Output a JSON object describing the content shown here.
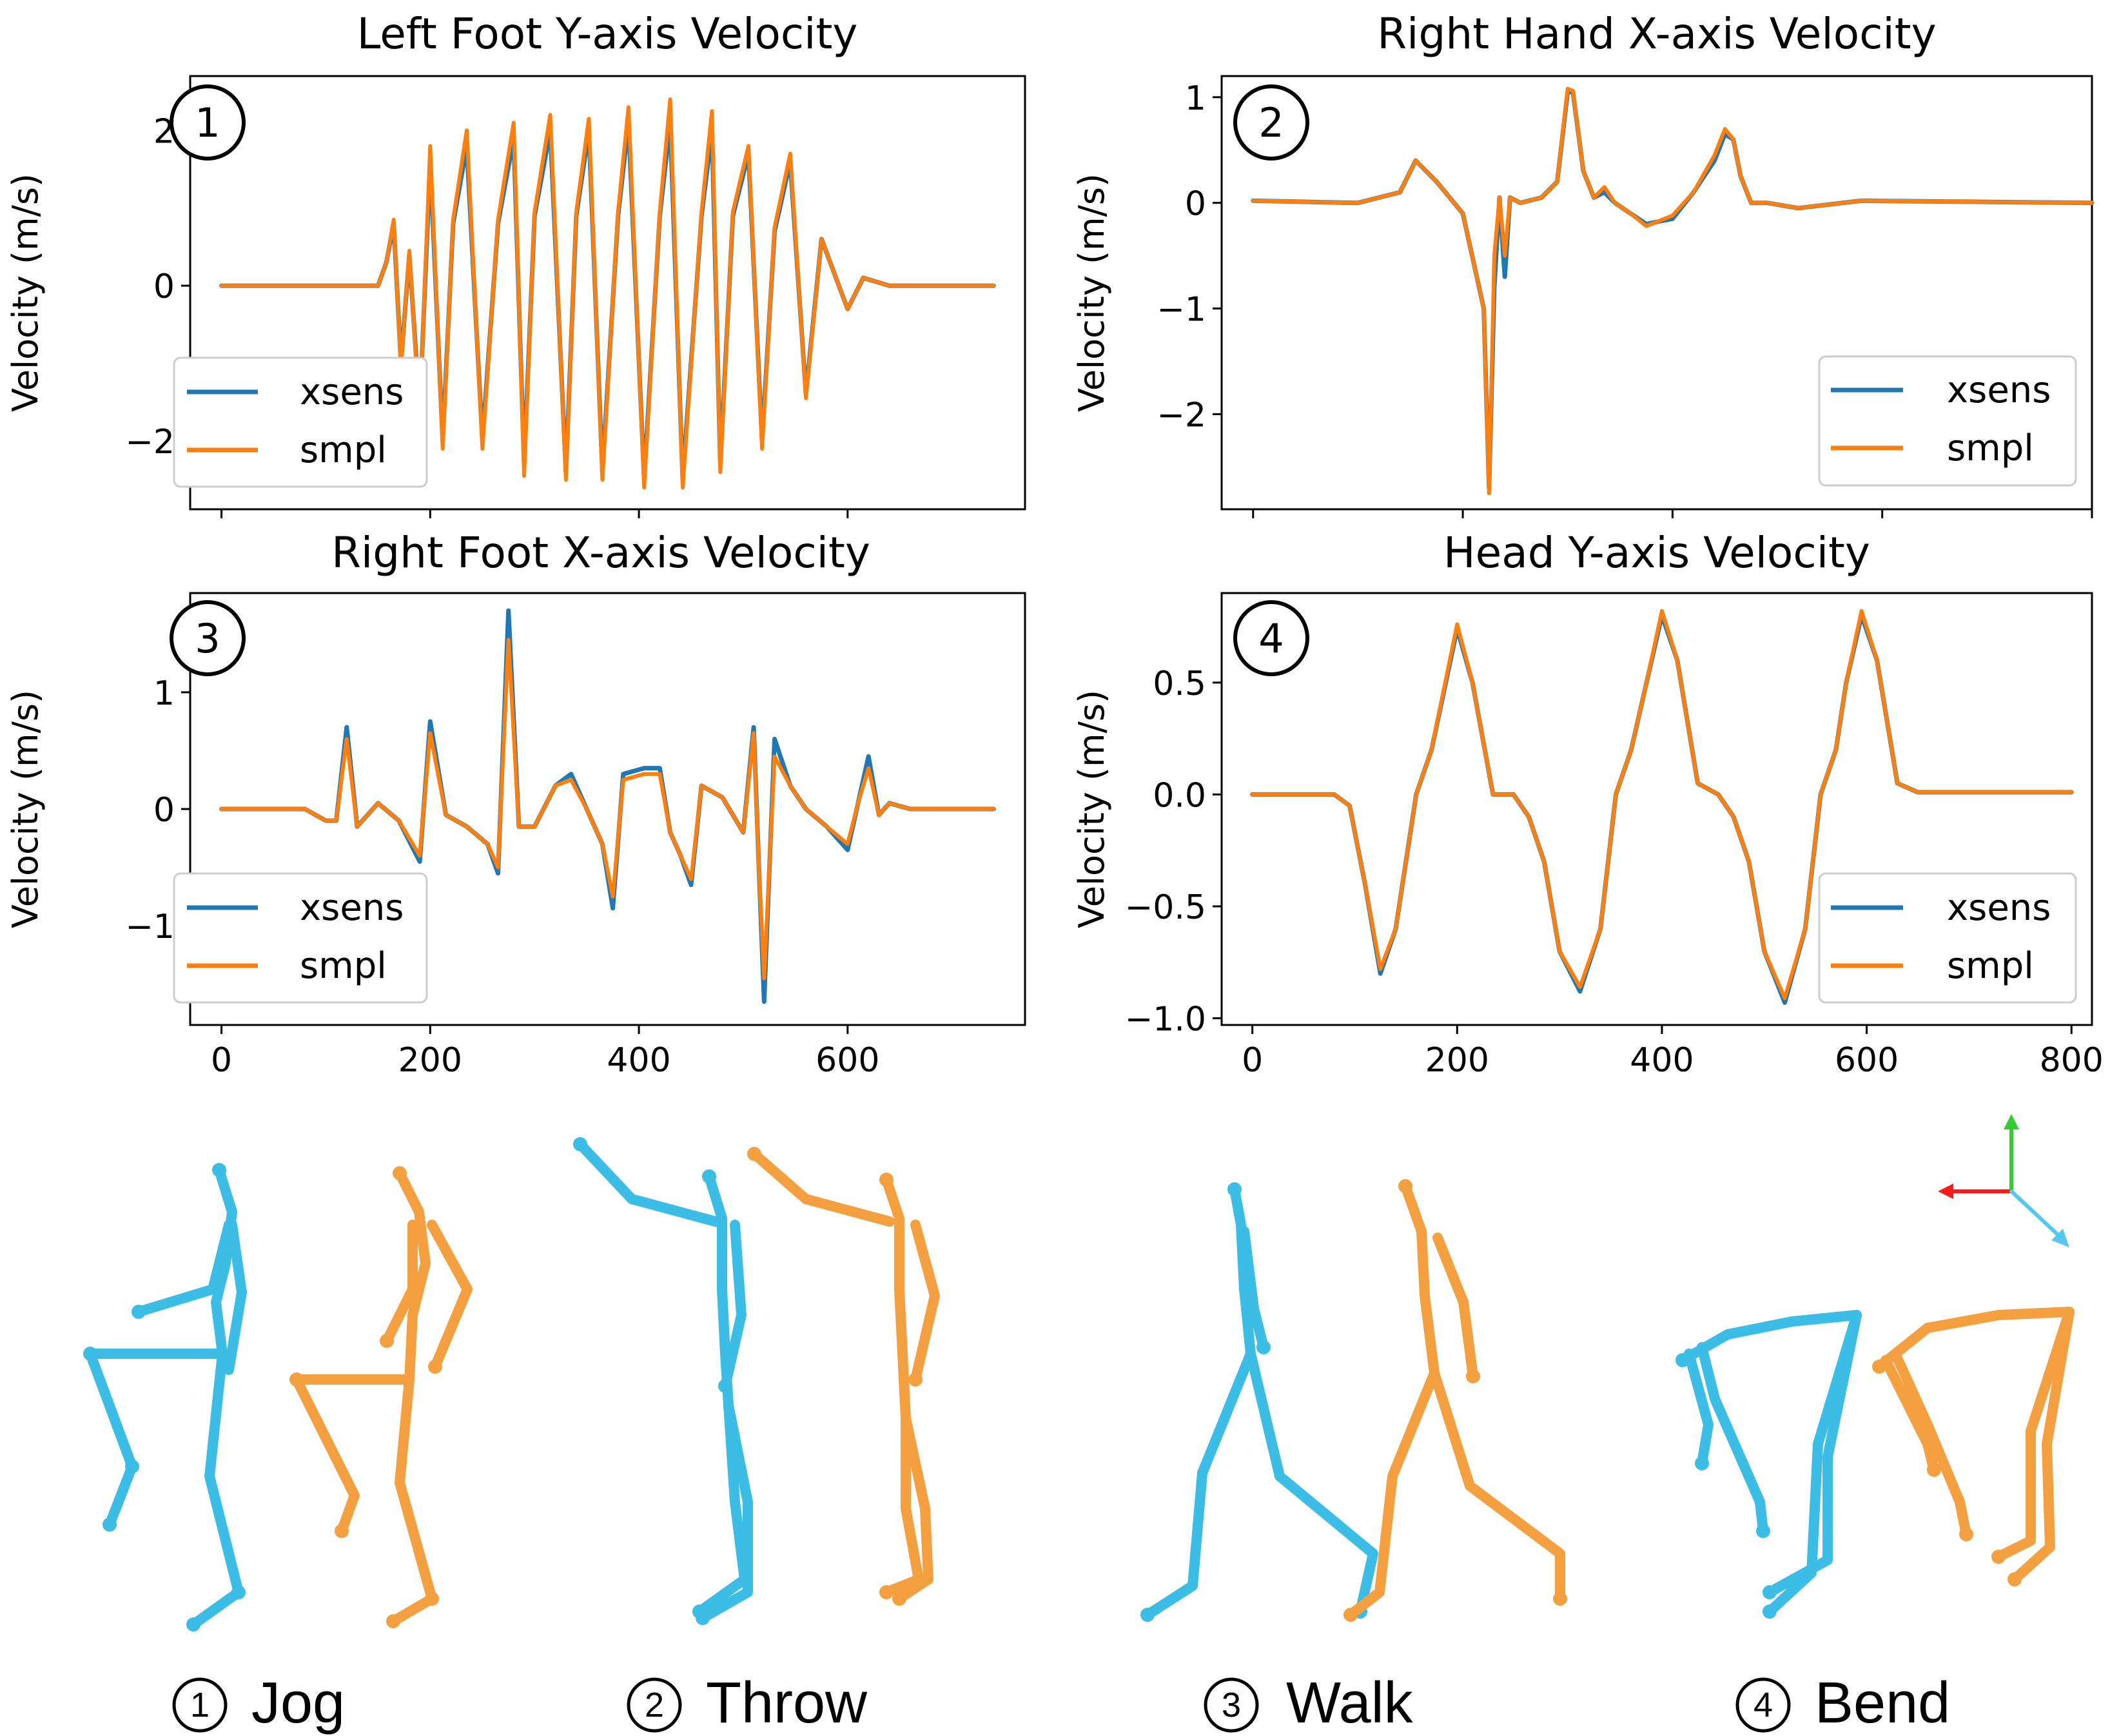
{
  "colors": {
    "xsens": "#1f77b4",
    "smpl": "#ff7f0e",
    "figure_xsens": "#3cbde6",
    "figure_smpl": "#f4a040",
    "axis_x": "#ff1a1a",
    "axis_y": "#33cc33",
    "axis_z": "#55c8f0"
  },
  "chart_data": [
    {
      "type": "line",
      "badge": "1",
      "title": "Left Foot Y-axis Velocity",
      "ylabel": "Velocity (m/s)",
      "xlabel": "",
      "xlim": [
        -30,
        770
      ],
      "ylim": [
        -2.88,
        2.7
      ],
      "yticks": [
        -2,
        0,
        2
      ],
      "ytick_labels": [
        "−2",
        "0",
        "2"
      ],
      "xticks": [
        0,
        200,
        400,
        600
      ],
      "xtick_labels": [],
      "legend": [
        "xsens",
        "smpl"
      ],
      "legend_position": "lower left",
      "series": [
        {
          "name": "xsens",
          "x": [
            0,
            150,
            158,
            165,
            172,
            180,
            190,
            200,
            212,
            222,
            235,
            250,
            265,
            280,
            290,
            300,
            315,
            330,
            340,
            352,
            365,
            380,
            390,
            405,
            420,
            430,
            442,
            460,
            470,
            478,
            490,
            505,
            518,
            530,
            545,
            560,
            575,
            600,
            615,
            640,
            660,
            740
          ],
          "y": [
            0,
            0,
            0.3,
            0.8,
            -1.0,
            0.4,
            -1.6,
            1.6,
            -2.0,
            0.8,
            1.8,
            -2.0,
            0.8,
            1.9,
            -2.3,
            0.9,
            2.0,
            -2.4,
            0.9,
            2.0,
            -2.4,
            0.9,
            2.1,
            -2.5,
            0.9,
            2.1,
            -2.5,
            0.9,
            2.0,
            -2.3,
            0.9,
            1.7,
            -2.0,
            0.7,
            1.6,
            -1.4,
            0.6,
            -0.3,
            0.1,
            0,
            0,
            0
          ]
        },
        {
          "name": "smpl",
          "x": [
            0,
            150,
            158,
            165,
            172,
            180,
            190,
            200,
            212,
            222,
            235,
            250,
            265,
            280,
            290,
            300,
            315,
            330,
            340,
            352,
            365,
            380,
            390,
            405,
            420,
            430,
            442,
            460,
            470,
            478,
            490,
            505,
            518,
            530,
            545,
            560,
            575,
            600,
            615,
            640,
            660,
            740
          ],
          "y": [
            0,
            0,
            0.3,
            0.85,
            -1.05,
            0.45,
            -1.7,
            1.8,
            -2.1,
            0.85,
            2.0,
            -2.1,
            0.85,
            2.1,
            -2.45,
            0.95,
            2.2,
            -2.5,
            0.95,
            2.15,
            -2.5,
            0.95,
            2.3,
            -2.6,
            0.95,
            2.4,
            -2.6,
            0.95,
            2.25,
            -2.4,
            0.95,
            1.8,
            -2.1,
            0.75,
            1.7,
            -1.45,
            0.6,
            -0.3,
            0.1,
            0,
            0,
            0
          ]
        }
      ]
    },
    {
      "type": "line",
      "badge": "2",
      "title": "Right Hand X-axis Velocity",
      "ylabel": "Velocity (m/s)",
      "xlabel": "",
      "xlim": [
        -30,
        800
      ],
      "ylim": [
        -2.9,
        1.2
      ],
      "yticks": [
        -2,
        -1,
        0,
        1
      ],
      "ytick_labels": [
        "−2",
        "−1",
        "0",
        "1"
      ],
      "xticks": [
        0,
        200,
        400,
        600,
        800
      ],
      "xtick_labels": [],
      "legend": [
        "xsens",
        "smpl"
      ],
      "legend_position": "lower right",
      "series": [
        {
          "name": "xsens",
          "x": [
            0,
            100,
            140,
            155,
            175,
            200,
            220,
            225,
            230,
            235,
            240,
            245,
            255,
            275,
            290,
            300,
            305,
            315,
            325,
            335,
            345,
            360,
            375,
            400,
            420,
            440,
            450,
            458,
            465,
            475,
            490,
            520,
            580,
            800
          ],
          "y": [
            0.02,
            0,
            0.1,
            0.4,
            0.2,
            -0.1,
            -1.0,
            -2.7,
            -0.8,
            0.05,
            -0.7,
            0.05,
            0.0,
            0.05,
            0.2,
            1.05,
            1.05,
            0.3,
            0.05,
            0.1,
            0.0,
            -0.1,
            -0.2,
            -0.15,
            0.1,
            0.4,
            0.65,
            0.6,
            0.25,
            0.0,
            0.0,
            -0.05,
            0.02,
            0
          ]
        },
        {
          "name": "smpl",
          "x": [
            0,
            100,
            140,
            155,
            175,
            200,
            220,
            225,
            230,
            235,
            240,
            245,
            255,
            275,
            290,
            300,
            305,
            315,
            325,
            335,
            345,
            360,
            375,
            400,
            420,
            440,
            450,
            458,
            465,
            475,
            490,
            520,
            580,
            800
          ],
          "y": [
            0.02,
            0,
            0.1,
            0.4,
            0.2,
            -0.1,
            -1.0,
            -2.75,
            -0.5,
            0.05,
            -0.5,
            0.05,
            0.0,
            0.05,
            0.2,
            1.08,
            1.06,
            0.3,
            0.05,
            0.15,
            0.0,
            -0.1,
            -0.22,
            -0.12,
            0.1,
            0.45,
            0.7,
            0.6,
            0.25,
            0.0,
            0.0,
            -0.05,
            0.02,
            0
          ]
        }
      ]
    },
    {
      "type": "line",
      "badge": "3",
      "title": "Right Foot X-axis Velocity",
      "ylabel": "Velocity (m/s)",
      "xlabel": "",
      "xlim": [
        -30,
        770
      ],
      "ylim": [
        -1.85,
        1.85
      ],
      "yticks": [
        -1,
        0,
        1
      ],
      "ytick_labels": [
        "−1",
        "0",
        "1"
      ],
      "xticks": [
        0,
        200,
        400,
        600
      ],
      "xtick_labels": [
        "0",
        "200",
        "400",
        "600"
      ],
      "legend": [
        "xsens",
        "smpl"
      ],
      "legend_position": "lower left",
      "series": [
        {
          "name": "xsens",
          "x": [
            0,
            80,
            100,
            110,
            120,
            130,
            150,
            170,
            190,
            200,
            215,
            235,
            255,
            265,
            275,
            285,
            300,
            320,
            335,
            350,
            365,
            375,
            385,
            405,
            420,
            430,
            440,
            450,
            460,
            480,
            500,
            510,
            515,
            520,
            530,
            545,
            560,
            580,
            600,
            610,
            620,
            630,
            640,
            660,
            740
          ],
          "y": [
            0,
            0,
            -0.1,
            -0.1,
            0.7,
            -0.15,
            0.05,
            -0.1,
            -0.45,
            0.75,
            -0.05,
            -0.15,
            -0.3,
            -0.55,
            1.7,
            -0.15,
            -0.15,
            0.2,
            0.3,
            0.0,
            -0.3,
            -0.85,
            0.3,
            0.35,
            0.35,
            -0.2,
            -0.4,
            -0.65,
            0.2,
            0.1,
            -0.2,
            0.7,
            -0.5,
            -1.65,
            0.6,
            0.2,
            0.0,
            -0.15,
            -0.35,
            0.05,
            0.45,
            -0.05,
            0.05,
            0,
            0
          ]
        },
        {
          "name": "smpl",
          "x": [
            0,
            80,
            100,
            110,
            120,
            130,
            150,
            170,
            190,
            200,
            215,
            235,
            255,
            265,
            275,
            285,
            300,
            320,
            335,
            350,
            365,
            375,
            385,
            405,
            420,
            430,
            440,
            450,
            460,
            480,
            500,
            510,
            515,
            520,
            530,
            545,
            560,
            580,
            600,
            610,
            620,
            630,
            640,
            660,
            740
          ],
          "y": [
            0,
            0,
            -0.1,
            -0.1,
            0.6,
            -0.15,
            0.05,
            -0.1,
            -0.4,
            0.65,
            -0.05,
            -0.15,
            -0.3,
            -0.5,
            1.45,
            -0.15,
            -0.15,
            0.2,
            0.25,
            0.0,
            -0.3,
            -0.75,
            0.25,
            0.3,
            0.3,
            -0.2,
            -0.4,
            -0.6,
            0.2,
            0.1,
            -0.2,
            0.65,
            -0.5,
            -1.45,
            0.45,
            0.2,
            0.0,
            -0.15,
            -0.3,
            0.05,
            0.35,
            -0.05,
            0.05,
            0,
            0
          ]
        }
      ]
    },
    {
      "type": "line",
      "badge": "4",
      "title": "Head Y-axis Velocity",
      "ylabel": "Velocity (m/s)",
      "xlabel": "",
      "xlim": [
        -30,
        820
      ],
      "ylim": [
        -1.03,
        0.9
      ],
      "yticks": [
        -1.0,
        -0.5,
        0.0,
        0.5
      ],
      "ytick_labels": [
        "−1.0",
        "−0.5",
        "0.0",
        "0.5"
      ],
      "xticks": [
        0,
        200,
        400,
        600,
        800
      ],
      "xtick_labels": [
        "0",
        "200",
        "400",
        "600",
        "800"
      ],
      "legend": [
        "xsens",
        "smpl"
      ],
      "legend_position": "lower right",
      "series": [
        {
          "name": "xsens",
          "x": [
            0,
            80,
            95,
            110,
            125,
            140,
            160,
            175,
            200,
            215,
            235,
            255,
            270,
            285,
            300,
            320,
            340,
            355,
            370,
            385,
            400,
            415,
            435,
            455,
            470,
            485,
            500,
            520,
            540,
            555,
            570,
            580,
            595,
            610,
            630,
            650,
            800
          ],
          "y": [
            0,
            0,
            -0.05,
            -0.4,
            -0.8,
            -0.6,
            0.0,
            0.2,
            0.74,
            0.5,
            0.0,
            0.0,
            -0.1,
            -0.3,
            -0.7,
            -0.88,
            -0.6,
            0.0,
            0.2,
            0.5,
            0.8,
            0.6,
            0.05,
            0.0,
            -0.1,
            -0.3,
            -0.7,
            -0.93,
            -0.6,
            0.0,
            0.2,
            0.5,
            0.8,
            0.6,
            0.05,
            0.01,
            0.01
          ]
        },
        {
          "name": "smpl",
          "x": [
            0,
            80,
            95,
            110,
            125,
            140,
            160,
            175,
            200,
            215,
            235,
            255,
            270,
            285,
            300,
            320,
            340,
            355,
            370,
            385,
            400,
            415,
            435,
            455,
            470,
            485,
            500,
            520,
            540,
            555,
            570,
            580,
            595,
            610,
            630,
            650,
            800
          ],
          "y": [
            0,
            0,
            -0.05,
            -0.4,
            -0.78,
            -0.6,
            0.0,
            0.2,
            0.76,
            0.5,
            0.0,
            0.0,
            -0.1,
            -0.3,
            -0.7,
            -0.86,
            -0.6,
            0.0,
            0.2,
            0.5,
            0.82,
            0.6,
            0.05,
            0.0,
            -0.1,
            -0.3,
            -0.7,
            -0.91,
            -0.6,
            0.0,
            0.2,
            0.5,
            0.82,
            0.6,
            0.05,
            0.01,
            0.01
          ]
        }
      ]
    }
  ],
  "captions": [
    {
      "num": "1",
      "label": "Jog"
    },
    {
      "num": "2",
      "label": "Throw"
    },
    {
      "num": "3",
      "label": "Walk"
    },
    {
      "num": "4",
      "label": "Bend"
    }
  ]
}
